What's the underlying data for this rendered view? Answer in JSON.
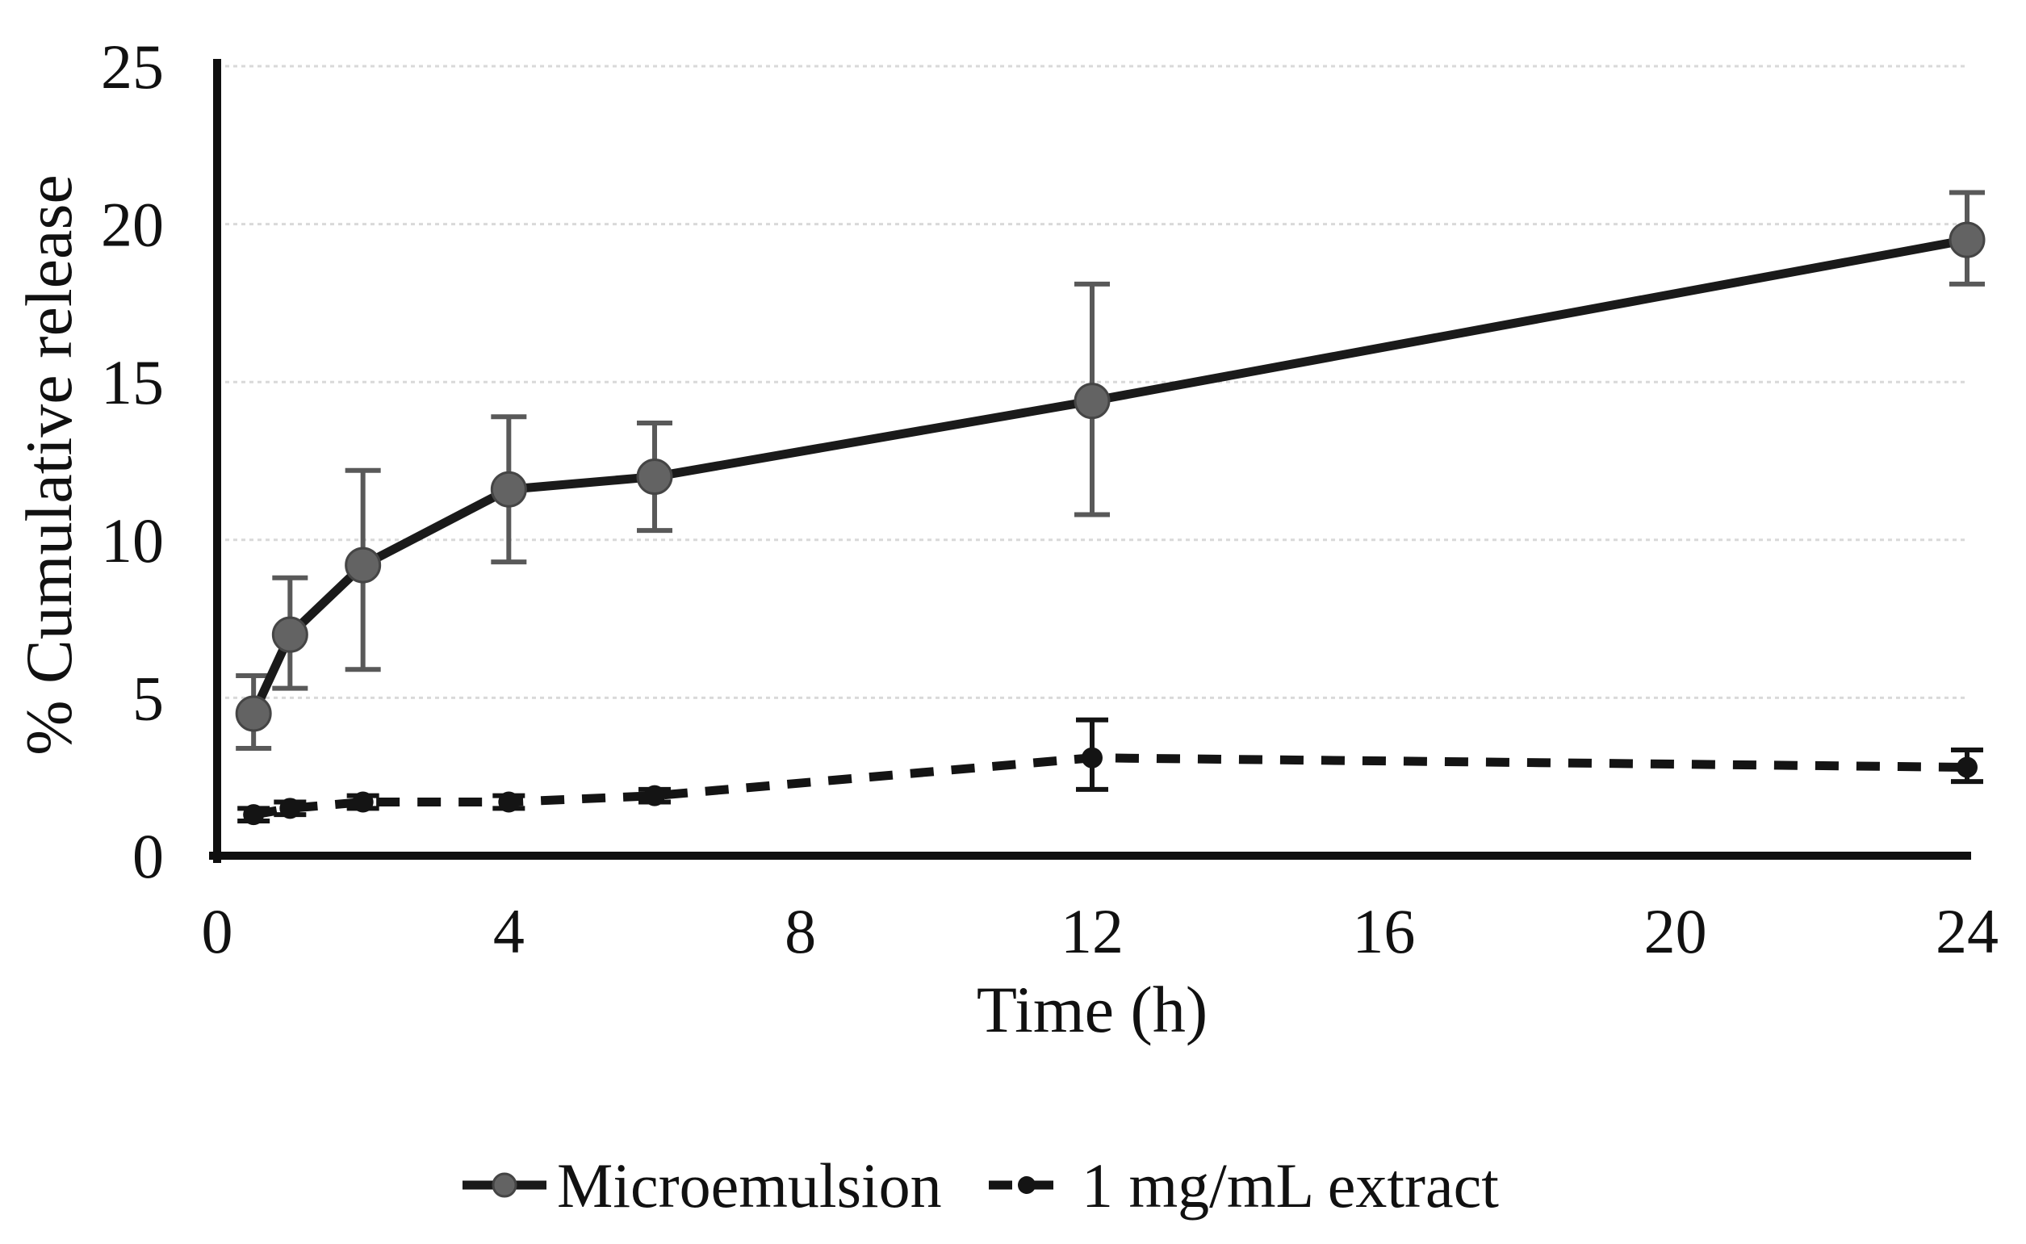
{
  "chart_data": {
    "type": "line",
    "title": "",
    "xlabel": "Time (h)",
    "ylabel": "% Cumulative release",
    "xlim": [
      0,
      24
    ],
    "ylim": [
      0,
      25
    ],
    "x_ticks": [
      0,
      4,
      8,
      12,
      16,
      20,
      24
    ],
    "y_ticks": [
      0,
      5,
      10,
      15,
      20,
      25
    ],
    "grid": "horizontal",
    "gridline_color": "#d9d9d9",
    "legend_position": "bottom-center",
    "series": [
      {
        "name": "Microemulsion",
        "style": "solid",
        "color": "#1a1a1a",
        "marker": "circle",
        "marker_color": "#636363",
        "error_color": "#595959",
        "x": [
          0.5,
          1,
          2,
          4,
          6,
          12,
          24
        ],
        "y": [
          4.5,
          7.0,
          9.2,
          11.6,
          12.0,
          14.4,
          19.5
        ],
        "err_up": [
          1.2,
          1.8,
          3.0,
          2.3,
          1.7,
          3.7,
          1.5
        ],
        "err_down": [
          1.1,
          1.7,
          3.3,
          2.3,
          1.7,
          3.6,
          1.4
        ]
      },
      {
        "name": "1 mg/mL extract",
        "style": "dashed",
        "color": "#141414",
        "marker": "circle-small",
        "marker_color": "#141414",
        "error_color": "#141414",
        "x": [
          0.5,
          1,
          2,
          4,
          6,
          12,
          24
        ],
        "y": [
          1.3,
          1.5,
          1.7,
          1.7,
          1.9,
          3.1,
          2.8
        ],
        "err_up": [
          0.2,
          0.2,
          0.2,
          0.2,
          0.2,
          1.2,
          0.55
        ],
        "err_down": [
          0.2,
          0.2,
          0.2,
          0.2,
          0.2,
          1.0,
          0.45
        ]
      }
    ]
  }
}
